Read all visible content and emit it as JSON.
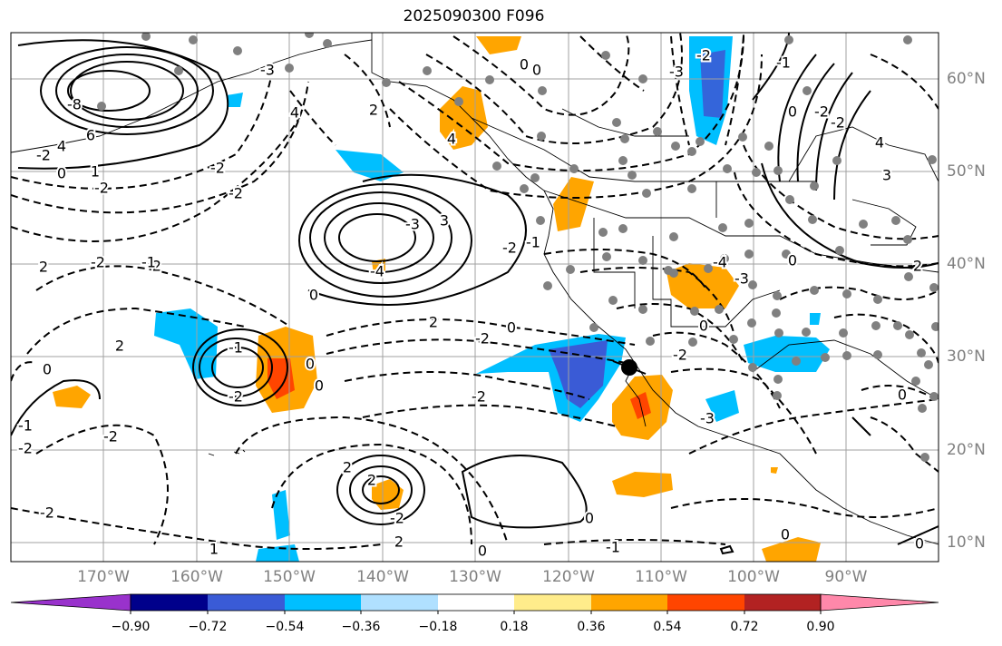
{
  "title": "2025090300 F096",
  "longitude_labels": [
    "170°W",
    "160°W",
    "150°W",
    "140°W",
    "130°W",
    "120°W",
    "110°W",
    "100°W",
    "90°W"
  ],
  "latitude_labels": [
    "60°N",
    "50°N",
    "40°N",
    "30°N",
    "20°N",
    "10°N"
  ],
  "colorbar": {
    "tick_labels": [
      "−0.90",
      "−0.72",
      "−0.54",
      "−0.36",
      "−0.18",
      "0.18",
      "0.36",
      "0.54",
      "0.72",
      "0.90"
    ],
    "colors": [
      "#9932cc",
      "#00008b",
      "#3a5bd6",
      "#00bfff",
      "#b0e0ff",
      "#ffffff",
      "#ffec8b",
      "#ffa500",
      "#ff4500",
      "#b22222",
      "#ff88aa"
    ]
  },
  "contour_labels": [
    "-8",
    "6",
    "4",
    "-2",
    "0",
    "1",
    "-2",
    "4",
    "-3",
    "-2",
    "-2",
    "2",
    "-2",
    "2",
    "0",
    "-2",
    "-1",
    "-2",
    "-2",
    "-2",
    "0",
    "-1",
    "-2",
    "-4",
    "-3",
    "3",
    "-2",
    "-1",
    "2",
    "4",
    "0",
    "2",
    "-2",
    "0",
    "-2",
    "0",
    "2",
    "2",
    "0",
    "-2",
    "2",
    "1",
    "0",
    "-1",
    "0",
    "0",
    "-2",
    "-3",
    "-4",
    "-3",
    "0",
    "2",
    "4",
    "3",
    "-2",
    "-2",
    "-3",
    "-2",
    "-1",
    "0",
    "0",
    "0",
    "-1",
    "0",
    "0"
  ],
  "colors": {
    "contour": "#000000",
    "grid": "#a0a0a0",
    "station": "#808080",
    "axis_label": "#808080"
  }
}
